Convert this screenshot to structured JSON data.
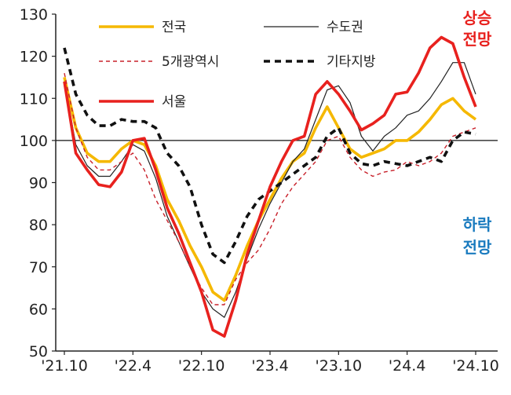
{
  "chart_data": {
    "type": "line",
    "x": [
      "'21.10",
      "'21.11",
      "'21.12",
      "'22.1",
      "'22.2",
      "'22.3",
      "'22.4",
      "'22.5",
      "'22.6",
      "'22.7",
      "'22.8",
      "'22.9",
      "'22.10",
      "'22.11",
      "'22.12",
      "'23.1",
      "'23.2",
      "'23.3",
      "'23.4",
      "'23.5",
      "'23.6",
      "'23.7",
      "'23.8",
      "'23.9",
      "'23.10",
      "'23.11",
      "'23.12",
      "'24.1",
      "'24.2",
      "'24.3",
      "'24.4",
      "'24.5",
      "'24.6",
      "'24.7",
      "'24.8",
      "'24.9",
      "'24.10"
    ],
    "x_tick_labels": [
      "'21.10",
      "'22.4",
      "'22.10",
      "'23.4",
      "'23.10",
      "'24.4",
      "'24.10"
    ],
    "ylim": [
      50,
      130
    ],
    "yticks": [
      50,
      60,
      70,
      80,
      90,
      100,
      110,
      120,
      130
    ],
    "reference_line": 100,
    "series": [
      {
        "name": "전국",
        "color": "#f5b800",
        "style": "solid-thick",
        "values": [
          115,
          103,
          97,
          95,
          95,
          98,
          100,
          99,
          94,
          86,
          81,
          75,
          70,
          64,
          62,
          68,
          75,
          81,
          86,
          91,
          95,
          97,
          103,
          108,
          103,
          98,
          96,
          97,
          98,
          100,
          100,
          102,
          105,
          108.5,
          110,
          107,
          105
        ]
      },
      {
        "name": "수도권",
        "color": "#222222",
        "style": "solid-thin",
        "values": [
          114,
          99,
          94,
          91.5,
          91.5,
          95,
          99,
          97.5,
          91,
          82,
          76,
          70,
          64,
          60,
          58,
          64,
          72,
          79,
          85,
          90,
          95,
          98,
          105,
          112,
          113,
          109,
          101,
          97.5,
          101,
          103,
          106,
          107,
          110,
          114,
          118.5,
          118.5,
          111
        ]
      },
      {
        "name": "5개광역시",
        "color": "#c8202a",
        "style": "dashed-thin",
        "values": [
          116,
          103,
          96,
          93,
          93,
          95,
          97,
          93,
          86,
          81,
          76,
          70,
          65,
          61,
          61,
          67,
          71,
          74,
          79,
          85,
          89,
          92,
          95,
          100,
          101,
          96,
          93,
          91.5,
          92.5,
          93,
          95,
          94,
          95,
          97,
          101,
          102,
          103
        ]
      },
      {
        "name": "기타지방",
        "color": "#111111",
        "style": "dashed-thick",
        "values": [
          122,
          111,
          106,
          103.5,
          103.5,
          105,
          104.5,
          104.5,
          103,
          97,
          94,
          89,
          80,
          73,
          71,
          76,
          82,
          86,
          88,
          90,
          92,
          94,
          96,
          101,
          103,
          97,
          94.5,
          94,
          95,
          94.5,
          94,
          95,
          96,
          95,
          100,
          102,
          101.5
        ]
      },
      {
        "name": "서울",
        "color": "#e8211e",
        "style": "solid-thick",
        "values": [
          114,
          97,
          93,
          89.5,
          89,
          92.5,
          100,
          100.5,
          93,
          84,
          78,
          71,
          64,
          55,
          53.5,
          62,
          73,
          81,
          89,
          95,
          100,
          101,
          111,
          114,
          111,
          107,
          102.5,
          104,
          106,
          111,
          111.5,
          116,
          122,
          124.5,
          123,
          115,
          108
        ]
      }
    ]
  },
  "annotations": {
    "up": {
      "line1": "상승",
      "line2": "전망",
      "color": "#e8211e"
    },
    "down": {
      "line1": "하락",
      "line2": "전망",
      "color": "#1a7bbf"
    }
  }
}
